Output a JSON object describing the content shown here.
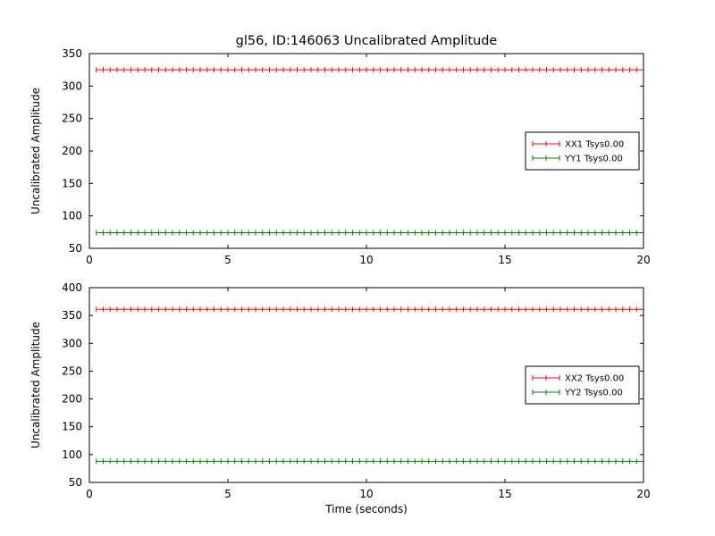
{
  "figure": {
    "title": "gl56, ID:146063 Uncalibrated Amplitude",
    "background": "#ffffff",
    "text_color": "#000000",
    "frame_color": "#000000"
  },
  "chart_data": [
    {
      "type": "line",
      "subplot": "top",
      "title": "gl56, ID:146063 Uncalibrated Amplitude",
      "xlabel": "",
      "ylabel": "Uncalibrated Amplitude",
      "xlim": [
        0,
        20
      ],
      "ylim": [
        50,
        350
      ],
      "xticks": [
        0,
        5,
        10,
        15,
        20
      ],
      "yticks": [
        50,
        100,
        150,
        200,
        250,
        300,
        350
      ],
      "grid": false,
      "legend": {
        "loc": "center right"
      },
      "series": [
        {
          "name": "XX1 Tsys0.00",
          "color": "#ff0000",
          "marker": "+",
          "x_start": 0.25,
          "x_end": 20,
          "x_step": 0.25,
          "y_constant": 325
        },
        {
          "name": "YY1 Tsys0.00",
          "color": "#008000",
          "marker": "+",
          "x_start": 0.25,
          "x_end": 20,
          "x_step": 0.25,
          "y_constant": 74
        }
      ]
    },
    {
      "type": "line",
      "subplot": "bottom",
      "title": "",
      "xlabel": "Time (seconds)",
      "ylabel": "Uncalibrated Amplitude",
      "xlim": [
        0,
        20
      ],
      "ylim": [
        50,
        400
      ],
      "xticks": [
        0,
        5,
        10,
        15,
        20
      ],
      "yticks": [
        50,
        100,
        150,
        200,
        250,
        300,
        350,
        400
      ],
      "grid": false,
      "legend": {
        "loc": "center right"
      },
      "series": [
        {
          "name": "XX2 Tsys0.00",
          "color": "#ff0000",
          "marker": "+",
          "x_start": 0.25,
          "x_end": 20,
          "x_step": 0.25,
          "y_constant": 361
        },
        {
          "name": "YY2 Tsys0.00",
          "color": "#008000",
          "marker": "+",
          "x_start": 0.25,
          "x_end": 20,
          "x_step": 0.25,
          "y_constant": 88
        }
      ]
    }
  ]
}
